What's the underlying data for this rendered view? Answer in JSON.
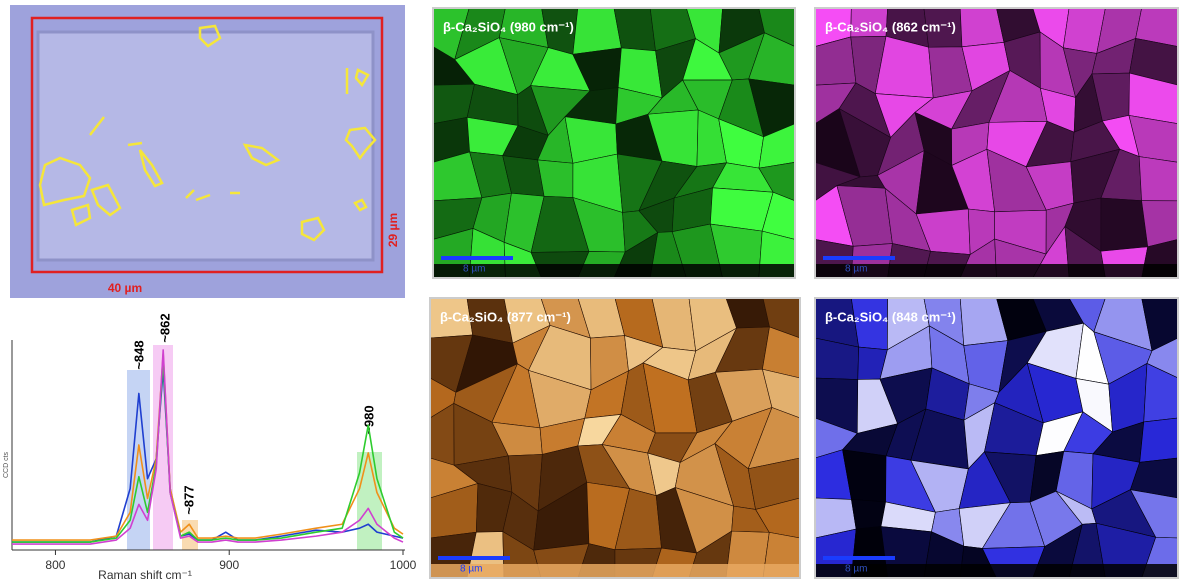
{
  "micrograph": {
    "width_label": "40 µm",
    "height_label": "29 µm"
  },
  "chart_data": {
    "type": "line",
    "xlabel": "Raman shift cm⁻¹",
    "ylabel": "CCD cts",
    "x": [
      775,
      820,
      835,
      843,
      848,
      853,
      858,
      862,
      866,
      872,
      877,
      882,
      890,
      898,
      905,
      915,
      930,
      950,
      965,
      975,
      980,
      985,
      995,
      1000
    ],
    "xlim": [
      775,
      1000
    ],
    "xticks": [
      800,
      900,
      1000
    ],
    "ylim": [
      0,
      105
    ],
    "series": [
      {
        "color": "#1f3fd0",
        "values": [
          3,
          3,
          6,
          30,
          78,
          35,
          45,
          90,
          30,
          6,
          7,
          4,
          4,
          8,
          4,
          4,
          6,
          9,
          8,
          10,
          12,
          8,
          6,
          5
        ]
      },
      {
        "color": "#f0901a",
        "values": [
          4,
          4,
          6,
          18,
          52,
          25,
          45,
          98,
          30,
          8,
          12,
          5,
          5,
          6,
          5,
          5,
          7,
          10,
          12,
          30,
          48,
          28,
          10,
          7
        ]
      },
      {
        "color": "#2ecc2e",
        "values": [
          3,
          3,
          5,
          14,
          36,
          18,
          42,
          95,
          28,
          6,
          8,
          4,
          4,
          5,
          4,
          4,
          5,
          8,
          10,
          38,
          62,
          35,
          8,
          5
        ]
      },
      {
        "color": "#d040d0",
        "values": [
          2,
          2,
          4,
          10,
          22,
          14,
          40,
          100,
          28,
          5,
          6,
          3,
          3,
          4,
          3,
          3,
          4,
          6,
          8,
          14,
          20,
          12,
          5,
          3
        ]
      }
    ],
    "peak_labels": [
      "~848",
      "~862",
      "~877",
      "~980"
    ]
  },
  "maps": [
    {
      "title": "β-Ca₂SiO₄ (980 cm⁻¹)",
      "scale_bar": "8 µm"
    },
    {
      "title": "β-Ca₂SiO₄ (862 cm⁻¹)",
      "scale_bar": "8 µm"
    },
    {
      "title": "β-Ca₂SiO₄ (877 cm⁻¹)",
      "scale_bar": "8 µm"
    },
    {
      "title": "β-Ca₂SiO₄ (848 cm⁻¹)",
      "scale_bar": "8 µm"
    }
  ]
}
